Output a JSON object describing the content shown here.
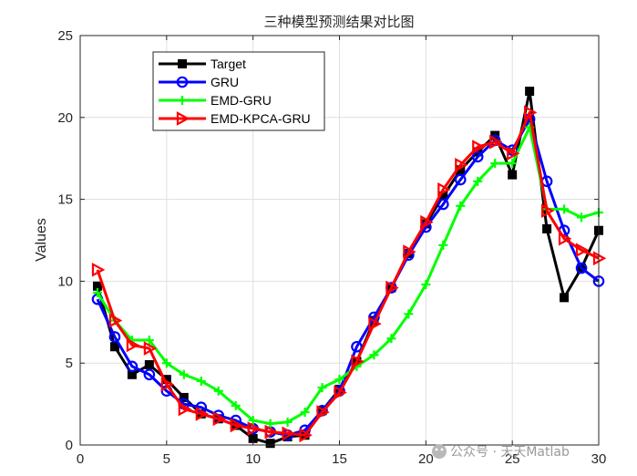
{
  "watermark": "公众号 · 天天Matlab",
  "chart_data": {
    "type": "line",
    "title": "三种模型预测结果对比图",
    "xlabel": "",
    "ylabel": "Values",
    "xlim": [
      0,
      30
    ],
    "ylim": [
      0,
      25
    ],
    "xticks": [
      0,
      5,
      10,
      15,
      20,
      25,
      30
    ],
    "yticks": [
      0,
      5,
      10,
      15,
      20,
      25
    ],
    "grid": true,
    "legend_position": "top-left",
    "x": [
      1,
      2,
      3,
      4,
      5,
      6,
      7,
      8,
      9,
      10,
      11,
      12,
      13,
      14,
      15,
      16,
      17,
      18,
      19,
      20,
      21,
      22,
      23,
      24,
      25,
      26,
      27,
      28,
      29,
      30
    ],
    "series": [
      {
        "name": "Target",
        "color": "#000000",
        "marker": "square",
        "values": [
          9.7,
          6.0,
          4.3,
          4.9,
          4.0,
          2.9,
          1.9,
          1.6,
          1.2,
          0.4,
          0.1,
          0.5,
          0.6,
          2.1,
          3.4,
          5.1,
          7.6,
          9.6,
          11.7,
          13.5,
          15.2,
          16.8,
          17.9,
          18.9,
          16.5,
          21.6,
          13.2,
          9.0,
          10.8,
          13.1
        ]
      },
      {
        "name": "GRU",
        "color": "#0000ff",
        "marker": "circle",
        "values": [
          8.9,
          6.6,
          4.8,
          4.3,
          3.3,
          2.5,
          2.3,
          1.8,
          1.5,
          1.0,
          0.8,
          0.6,
          0.9,
          2.1,
          3.3,
          6.0,
          7.8,
          9.6,
          11.6,
          13.3,
          14.7,
          16.2,
          17.6,
          18.6,
          18.0,
          19.9,
          16.1,
          13.1,
          10.8,
          10.0
        ]
      },
      {
        "name": "EMD-GRU",
        "color": "#00ff00",
        "marker": "plus",
        "values": [
          9.3,
          7.6,
          6.4,
          6.4,
          5.0,
          4.3,
          3.9,
          3.3,
          2.4,
          1.5,
          1.3,
          1.4,
          2.0,
          3.5,
          4.0,
          4.8,
          5.5,
          6.5,
          8.0,
          9.8,
          12.2,
          14.6,
          16.1,
          17.2,
          17.2,
          19.4,
          14.4,
          14.4,
          13.9,
          14.2
        ]
      },
      {
        "name": "EMD-KPCA-GRU",
        "color": "#ff0000",
        "marker": "triangle-right",
        "values": [
          10.7,
          7.6,
          6.1,
          5.9,
          3.7,
          2.2,
          1.9,
          1.6,
          1.2,
          1.0,
          0.8,
          0.7,
          0.6,
          2.0,
          3.2,
          5.1,
          7.4,
          9.6,
          11.8,
          13.6,
          15.6,
          17.1,
          18.2,
          18.5,
          17.8,
          20.3,
          14.3,
          12.6,
          11.9,
          11.4
        ]
      }
    ]
  }
}
